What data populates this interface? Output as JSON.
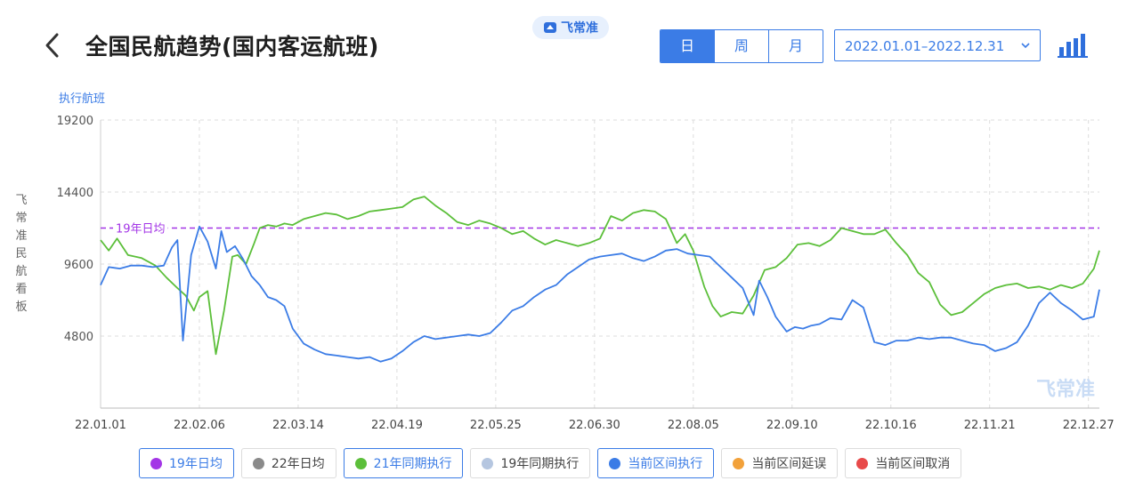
{
  "header": {
    "title": "全国民航趋势(国内客运航班)",
    "brand": "飞常准",
    "tabs": [
      {
        "label": "日",
        "active": true
      },
      {
        "label": "周",
        "active": false
      },
      {
        "label": "月",
        "active": false
      }
    ],
    "date_range": "2022.01.01–2022.12.31",
    "icons": {
      "back": "back-chevron-icon",
      "date": "chevron-down-icon",
      "chart": "bar-chart-icon",
      "brand": "plane-logo-icon"
    }
  },
  "side_brand": "飞常准民航看板",
  "watermark": "飞常准",
  "colors": {
    "accent": "#3b7ce6",
    "purple": "#a335e6",
    "green": "#5cbf3a",
    "blue": "#3b7ce6"
  },
  "legend": [
    {
      "label": "19年日均",
      "color": "#a335e6",
      "active": true
    },
    {
      "label": "22年日均",
      "color": "#8a8a8a",
      "active": false
    },
    {
      "label": "21年同期执行",
      "color": "#5cbf3a",
      "active": true
    },
    {
      "label": "19年同期执行",
      "color": "#b5c6e0",
      "active": false
    },
    {
      "label": "当前区间执行",
      "color": "#3b7ce6",
      "active": true
    },
    {
      "label": "当前区间延误",
      "color": "#f2a13a",
      "active": false
    },
    {
      "label": "当前区间取消",
      "color": "#e84a4a",
      "active": false
    }
  ],
  "chart_data": {
    "type": "line",
    "ylabel": "执行航班",
    "ylim": [
      0,
      19200
    ],
    "yticks": [
      4800,
      9600,
      14400,
      19200
    ],
    "xtick_labels": [
      "22.01.01",
      "22.02.06",
      "22.03.14",
      "22.04.19",
      "22.05.25",
      "22.06.30",
      "22.08.05",
      "22.09.10",
      "22.10.16",
      "22.11.21",
      "22.12.27"
    ],
    "xtick_days": [
      0,
      36,
      72,
      108,
      144,
      180,
      216,
      252,
      288,
      324,
      360
    ],
    "xlim": [
      0,
      364
    ],
    "grid": true,
    "reference_line": {
      "label": "19年日均",
      "value": 12000
    },
    "series": [
      {
        "name": "21年同期执行",
        "color": "#5cbf3a",
        "days": [
          0,
          3,
          6,
          10,
          15,
          20,
          24,
          28,
          31,
          34,
          36,
          39,
          42,
          45,
          48,
          50,
          53,
          56,
          58,
          61,
          64,
          67,
          70,
          74,
          78,
          82,
          86,
          90,
          94,
          98,
          102,
          106,
          110,
          114,
          118,
          122,
          126,
          130,
          134,
          138,
          142,
          146,
          150,
          154,
          158,
          162,
          166,
          170,
          174,
          178,
          182,
          186,
          190,
          194,
          198,
          202,
          206,
          210,
          213,
          216,
          220,
          223,
          226,
          230,
          234,
          238,
          242,
          246,
          250,
          254,
          258,
          262,
          266,
          270,
          274,
          278,
          282,
          286,
          290,
          294,
          298,
          302,
          306,
          310,
          314,
          318,
          322,
          326,
          330,
          334,
          338,
          342,
          346,
          350,
          354,
          358,
          362,
          364
        ],
        "values": [
          11200,
          10500,
          11300,
          10200,
          10000,
          9500,
          8700,
          8000,
          7500,
          6500,
          7400,
          7800,
          3600,
          6500,
          10100,
          10200,
          9600,
          11000,
          12000,
          12200,
          12100,
          12300,
          12200,
          12600,
          12800,
          13000,
          12900,
          12600,
          12800,
          13100,
          13200,
          13300,
          13400,
          13900,
          14100,
          13500,
          13000,
          12400,
          12200,
          12500,
          12300,
          12000,
          11600,
          11800,
          11300,
          10900,
          11200,
          11000,
          10800,
          11000,
          11300,
          12800,
          12500,
          13000,
          13200,
          13100,
          12600,
          11000,
          11600,
          10500,
          8100,
          6800,
          6100,
          6400,
          6300,
          7500,
          9200,
          9400,
          10000,
          10900,
          11000,
          10800,
          11200,
          12000,
          11800,
          11600,
          11600,
          11900,
          11000,
          10200,
          9000,
          8400,
          6900,
          6200,
          6400,
          7000,
          7600,
          8000,
          8200,
          8300,
          8000,
          8100,
          7900,
          8200,
          8000,
          8300,
          9300,
          10500
        ]
      },
      {
        "name": "当前区间执行",
        "color": "#3b7ce6",
        "days": [
          0,
          3,
          7,
          11,
          15,
          19,
          23,
          26,
          28,
          30,
          33,
          36,
          39,
          42,
          44,
          46,
          49,
          52,
          55,
          58,
          61,
          64,
          67,
          70,
          74,
          78,
          82,
          86,
          90,
          94,
          98,
          102,
          106,
          110,
          114,
          118,
          122,
          126,
          130,
          134,
          138,
          142,
          146,
          150,
          154,
          158,
          162,
          166,
          170,
          174,
          178,
          182,
          186,
          190,
          194,
          198,
          202,
          206,
          210,
          214,
          218,
          222,
          226,
          230,
          234,
          238,
          240,
          243,
          246,
          250,
          253,
          256,
          259,
          262,
          266,
          270,
          274,
          278,
          282,
          286,
          290,
          294,
          298,
          302,
          306,
          310,
          314,
          318,
          322,
          326,
          330,
          334,
          338,
          342,
          346,
          350,
          354,
          358,
          362,
          364
        ],
        "values": [
          8200,
          9400,
          9300,
          9500,
          9500,
          9400,
          9500,
          10700,
          11200,
          4500,
          10200,
          12100,
          11100,
          9300,
          11800,
          10400,
          10800,
          9900,
          8800,
          8200,
          7400,
          7200,
          6800,
          5300,
          4300,
          3900,
          3600,
          3500,
          3400,
          3300,
          3400,
          3100,
          3300,
          3800,
          4400,
          4800,
          4600,
          4700,
          4800,
          4900,
          4800,
          5000,
          5700,
          6500,
          6800,
          7400,
          7900,
          8200,
          8900,
          9400,
          9900,
          10100,
          10200,
          10300,
          10000,
          9800,
          10100,
          10500,
          10600,
          10300,
          10200,
          10100,
          9400,
          8700,
          8000,
          6200,
          8500,
          7400,
          6100,
          5100,
          5400,
          5300,
          5500,
          5600,
          6000,
          5900,
          7200,
          6700,
          4400,
          4200,
          4500,
          4500,
          4700,
          4600,
          4700,
          4700,
          4500,
          4300,
          4200,
          3800,
          4000,
          4400,
          5500,
          7000,
          7700,
          7000,
          6500,
          5900,
          6100,
          7900
        ]
      }
    ]
  }
}
